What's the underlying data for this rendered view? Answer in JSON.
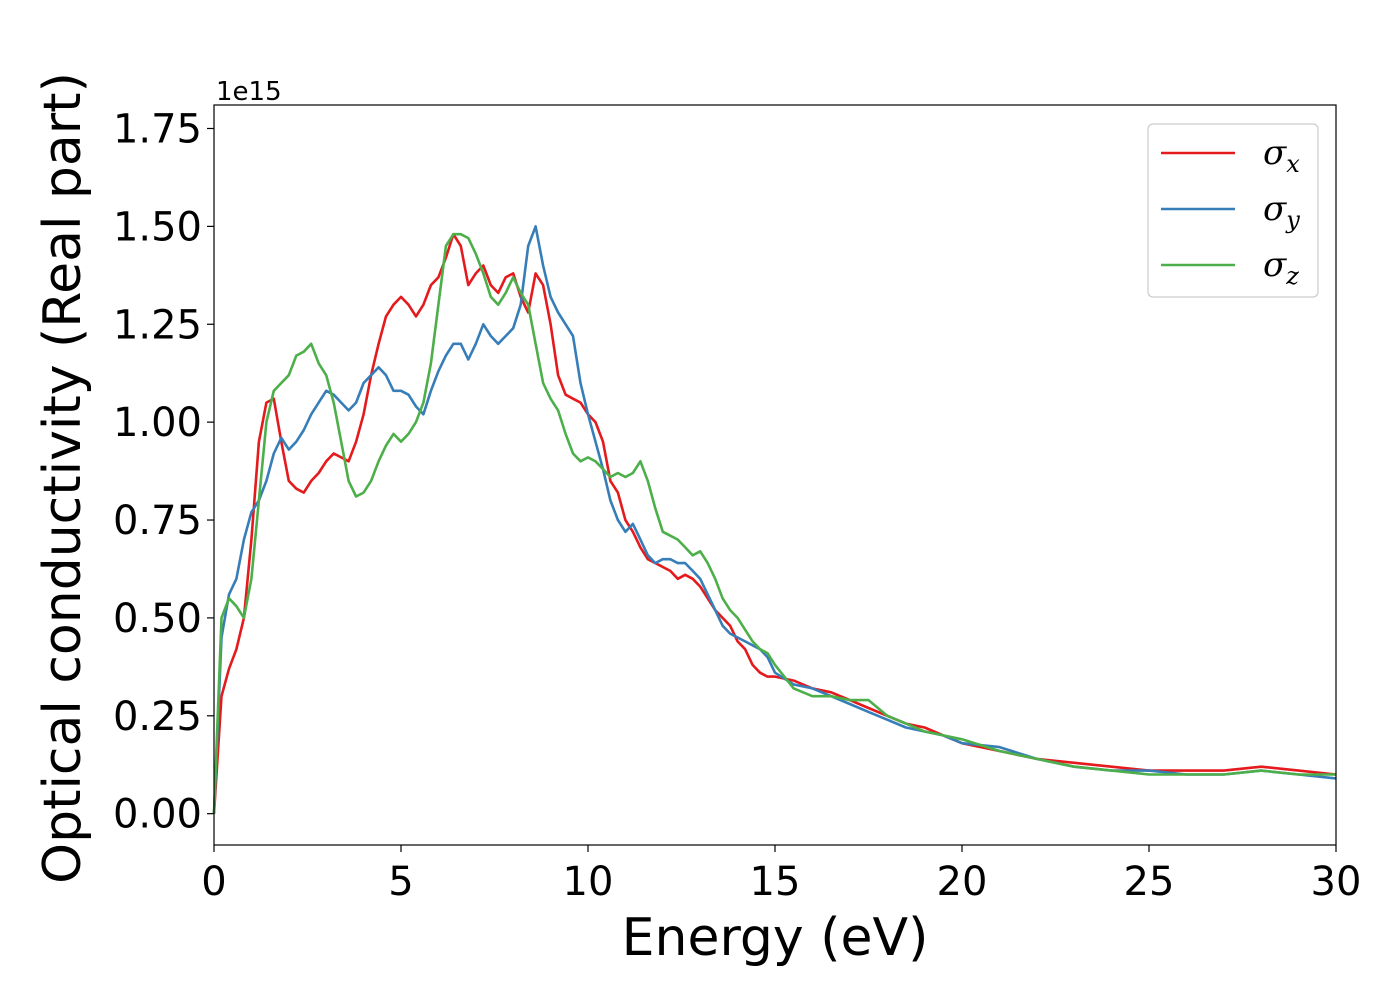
{
  "chart_data": {
    "type": "line",
    "xlabel": "Energy (eV)",
    "ylabel": "Optical conductivity (Real part)",
    "y_offset_label": "1e15",
    "y_scale": 1000000000000000.0,
    "xlim": [
      0,
      30
    ],
    "ylim": [
      -0.08,
      1.81
    ],
    "xticks": [
      0,
      5,
      10,
      15,
      20,
      25,
      30
    ],
    "xtick_labels": [
      "0",
      "5",
      "10",
      "15",
      "20",
      "25",
      "30"
    ],
    "yticks": [
      0.0,
      0.25,
      0.5,
      0.75,
      1.0,
      1.25,
      1.5,
      1.75
    ],
    "ytick_labels": [
      "0.00",
      "0.25",
      "0.50",
      "0.75",
      "1.00",
      "1.25",
      "1.50",
      "1.75"
    ],
    "grid": false,
    "legend_position": "top-right",
    "series": [
      {
        "name": "σ",
        "subscript": "x",
        "color": "#e41a1c",
        "x": [
          0,
          0.2,
          0.4,
          0.6,
          0.8,
          1.0,
          1.2,
          1.4,
          1.6,
          1.8,
          2.0,
          2.2,
          2.4,
          2.6,
          2.8,
          3.0,
          3.2,
          3.4,
          3.6,
          3.8,
          4.0,
          4.2,
          4.4,
          4.6,
          4.8,
          5.0,
          5.2,
          5.4,
          5.6,
          5.8,
          6.0,
          6.2,
          6.4,
          6.6,
          6.8,
          7.0,
          7.2,
          7.4,
          7.6,
          7.8,
          8.0,
          8.2,
          8.4,
          8.6,
          8.8,
          9.0,
          9.2,
          9.4,
          9.6,
          9.8,
          10.0,
          10.2,
          10.4,
          10.6,
          10.8,
          11.0,
          11.2,
          11.4,
          11.6,
          11.8,
          12.0,
          12.2,
          12.4,
          12.6,
          12.8,
          13.0,
          13.2,
          13.4,
          13.6,
          13.8,
          14.0,
          14.2,
          14.4,
          14.6,
          14.8,
          15.0,
          15.5,
          16.0,
          16.5,
          17.0,
          17.5,
          18.0,
          18.5,
          19.0,
          19.5,
          20.0,
          21.0,
          22.0,
          23.0,
          24.0,
          25.0,
          26.0,
          27.0,
          28.0,
          29.0,
          30.0
        ],
        "y": [
          0.0,
          0.3,
          0.37,
          0.42,
          0.5,
          0.7,
          0.95,
          1.05,
          1.06,
          0.95,
          0.85,
          0.83,
          0.82,
          0.85,
          0.87,
          0.9,
          0.92,
          0.91,
          0.9,
          0.95,
          1.02,
          1.12,
          1.2,
          1.27,
          1.3,
          1.32,
          1.3,
          1.27,
          1.3,
          1.35,
          1.37,
          1.42,
          1.48,
          1.45,
          1.35,
          1.38,
          1.4,
          1.35,
          1.33,
          1.37,
          1.38,
          1.32,
          1.28,
          1.38,
          1.35,
          1.25,
          1.12,
          1.07,
          1.06,
          1.05,
          1.02,
          1.0,
          0.95,
          0.85,
          0.82,
          0.75,
          0.72,
          0.68,
          0.65,
          0.64,
          0.63,
          0.62,
          0.6,
          0.61,
          0.6,
          0.58,
          0.55,
          0.52,
          0.5,
          0.48,
          0.44,
          0.42,
          0.38,
          0.36,
          0.35,
          0.35,
          0.34,
          0.32,
          0.31,
          0.29,
          0.27,
          0.25,
          0.23,
          0.22,
          0.2,
          0.18,
          0.16,
          0.14,
          0.13,
          0.12,
          0.11,
          0.11,
          0.11,
          0.12,
          0.11,
          0.1
        ]
      },
      {
        "name": "σ",
        "subscript": "y",
        "color": "#377eb8",
        "x": [
          0,
          0.2,
          0.4,
          0.6,
          0.8,
          1.0,
          1.2,
          1.4,
          1.6,
          1.8,
          2.0,
          2.2,
          2.4,
          2.6,
          2.8,
          3.0,
          3.2,
          3.4,
          3.6,
          3.8,
          4.0,
          4.2,
          4.4,
          4.6,
          4.8,
          5.0,
          5.2,
          5.4,
          5.6,
          5.8,
          6.0,
          6.2,
          6.4,
          6.6,
          6.8,
          7.0,
          7.2,
          7.4,
          7.6,
          7.8,
          8.0,
          8.2,
          8.4,
          8.6,
          8.8,
          9.0,
          9.2,
          9.4,
          9.6,
          9.8,
          10.0,
          10.2,
          10.4,
          10.6,
          10.8,
          11.0,
          11.2,
          11.4,
          11.6,
          11.8,
          12.0,
          12.2,
          12.4,
          12.6,
          12.8,
          13.0,
          13.2,
          13.4,
          13.6,
          13.8,
          14.0,
          14.2,
          14.4,
          14.6,
          14.8,
          15.0,
          15.5,
          16.0,
          16.5,
          17.0,
          17.5,
          18.0,
          18.5,
          19.0,
          19.5,
          20.0,
          21.0,
          22.0,
          23.0,
          24.0,
          25.0,
          26.0,
          27.0,
          28.0,
          29.0,
          30.0
        ],
        "y": [
          0.0,
          0.45,
          0.56,
          0.6,
          0.7,
          0.77,
          0.8,
          0.85,
          0.92,
          0.96,
          0.93,
          0.95,
          0.98,
          1.02,
          1.05,
          1.08,
          1.07,
          1.05,
          1.03,
          1.05,
          1.1,
          1.12,
          1.14,
          1.12,
          1.08,
          1.08,
          1.07,
          1.04,
          1.02,
          1.08,
          1.13,
          1.17,
          1.2,
          1.2,
          1.16,
          1.2,
          1.25,
          1.22,
          1.2,
          1.22,
          1.24,
          1.3,
          1.45,
          1.5,
          1.4,
          1.32,
          1.28,
          1.25,
          1.22,
          1.1,
          1.02,
          0.95,
          0.88,
          0.8,
          0.75,
          0.72,
          0.74,
          0.7,
          0.66,
          0.64,
          0.65,
          0.65,
          0.64,
          0.64,
          0.62,
          0.6,
          0.56,
          0.52,
          0.48,
          0.46,
          0.45,
          0.44,
          0.43,
          0.42,
          0.4,
          0.36,
          0.33,
          0.32,
          0.3,
          0.28,
          0.26,
          0.24,
          0.22,
          0.21,
          0.2,
          0.18,
          0.17,
          0.14,
          0.12,
          0.11,
          0.11,
          0.1,
          0.1,
          0.11,
          0.1,
          0.09
        ]
      },
      {
        "name": "σ",
        "subscript": "z",
        "color": "#4daf4a",
        "x": [
          0,
          0.2,
          0.4,
          0.6,
          0.8,
          1.0,
          1.2,
          1.4,
          1.6,
          1.8,
          2.0,
          2.2,
          2.4,
          2.6,
          2.8,
          3.0,
          3.2,
          3.4,
          3.6,
          3.8,
          4.0,
          4.2,
          4.4,
          4.6,
          4.8,
          5.0,
          5.2,
          5.4,
          5.6,
          5.8,
          6.0,
          6.2,
          6.4,
          6.6,
          6.8,
          7.0,
          7.2,
          7.4,
          7.6,
          7.8,
          8.0,
          8.2,
          8.4,
          8.6,
          8.8,
          9.0,
          9.2,
          9.4,
          9.6,
          9.8,
          10.0,
          10.2,
          10.4,
          10.6,
          10.8,
          11.0,
          11.2,
          11.4,
          11.6,
          11.8,
          12.0,
          12.2,
          12.4,
          12.6,
          12.8,
          13.0,
          13.2,
          13.4,
          13.6,
          13.8,
          14.0,
          14.2,
          14.4,
          14.6,
          14.8,
          15.0,
          15.5,
          16.0,
          16.5,
          17.0,
          17.5,
          18.0,
          18.5,
          19.0,
          19.5,
          20.0,
          21.0,
          22.0,
          23.0,
          24.0,
          25.0,
          26.0,
          27.0,
          28.0,
          29.0,
          30.0
        ],
        "y": [
          0.0,
          0.5,
          0.55,
          0.53,
          0.5,
          0.6,
          0.8,
          1.0,
          1.08,
          1.1,
          1.12,
          1.17,
          1.18,
          1.2,
          1.15,
          1.12,
          1.05,
          0.95,
          0.85,
          0.81,
          0.82,
          0.85,
          0.9,
          0.94,
          0.97,
          0.95,
          0.97,
          1.0,
          1.05,
          1.15,
          1.3,
          1.45,
          1.48,
          1.48,
          1.47,
          1.43,
          1.38,
          1.32,
          1.3,
          1.33,
          1.37,
          1.33,
          1.3,
          1.2,
          1.1,
          1.06,
          1.03,
          0.97,
          0.92,
          0.9,
          0.91,
          0.9,
          0.88,
          0.86,
          0.87,
          0.86,
          0.87,
          0.9,
          0.85,
          0.78,
          0.72,
          0.71,
          0.7,
          0.68,
          0.66,
          0.67,
          0.64,
          0.6,
          0.55,
          0.52,
          0.5,
          0.47,
          0.44,
          0.42,
          0.41,
          0.38,
          0.32,
          0.3,
          0.3,
          0.29,
          0.29,
          0.25,
          0.23,
          0.21,
          0.2,
          0.19,
          0.16,
          0.14,
          0.12,
          0.11,
          0.1,
          0.1,
          0.1,
          0.11,
          0.1,
          0.1
        ]
      }
    ]
  }
}
